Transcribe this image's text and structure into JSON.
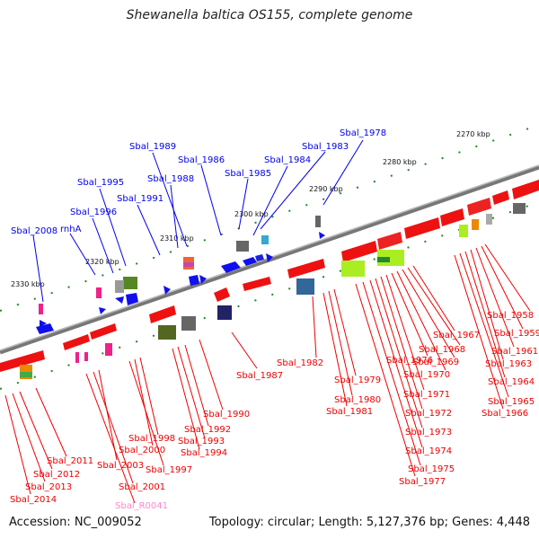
{
  "title": "Shewanella baltica OS155, complete genome",
  "footer": {
    "accession": "Accession: NC_009052",
    "info": "Topology: circular; Length: 5,127,376 bp; Genes: 4,448"
  },
  "ticks": [
    "2270 kbp",
    "2280 kbp",
    "2290 kbp",
    "2300 kbp",
    "2310 kbp",
    "2320 kbp",
    "2330 kbp"
  ],
  "genes_top": [
    "Sbal_1978",
    "Sbal_1983",
    "Sbal_1984",
    "Sbal_1985",
    "Sbal_1986",
    "Sbal_1989",
    "Sbal_1988",
    "Sbal_1995",
    "Sbal_1991",
    "Sbal_1996",
    "Sbal_2008",
    "rnhA"
  ],
  "genes_bottom": [
    "Sbal_1958",
    "Sbal_1959",
    "Sbal_1961",
    "Sbal_1963",
    "Sbal_1964",
    "Sbal_1965",
    "Sbal_1966",
    "Sbal_1967",
    "Sbal_1968",
    "Sbal_1969",
    "Sbal_1970",
    "Sbal_1976",
    "Sbal_1971",
    "Sbal_1972",
    "Sbal_1973",
    "Sbal_1974",
    "Sbal_1975",
    "Sbal_1977",
    "Sbal_1979",
    "Sbal_1980",
    "Sbal_1981",
    "Sbal_1982",
    "Sbal_1987",
    "Sbal_1990",
    "Sbal_1992",
    "Sbal_1993",
    "Sbal_1994",
    "Sbal_1998",
    "Sbal_2000",
    "Sbal_1997",
    "Sbal_2003",
    "Sbal_2001",
    "Sbal_R0041",
    "Sbal_2011",
    "Sbal_2012",
    "Sbal_2013",
    "Sbal_2014"
  ],
  "colors": {
    "cds_forward": "#0000ee",
    "cds_reverse": "#ee0000",
    "rna": "#ff88cc",
    "backbone": "#888888",
    "tick": "#228822"
  }
}
